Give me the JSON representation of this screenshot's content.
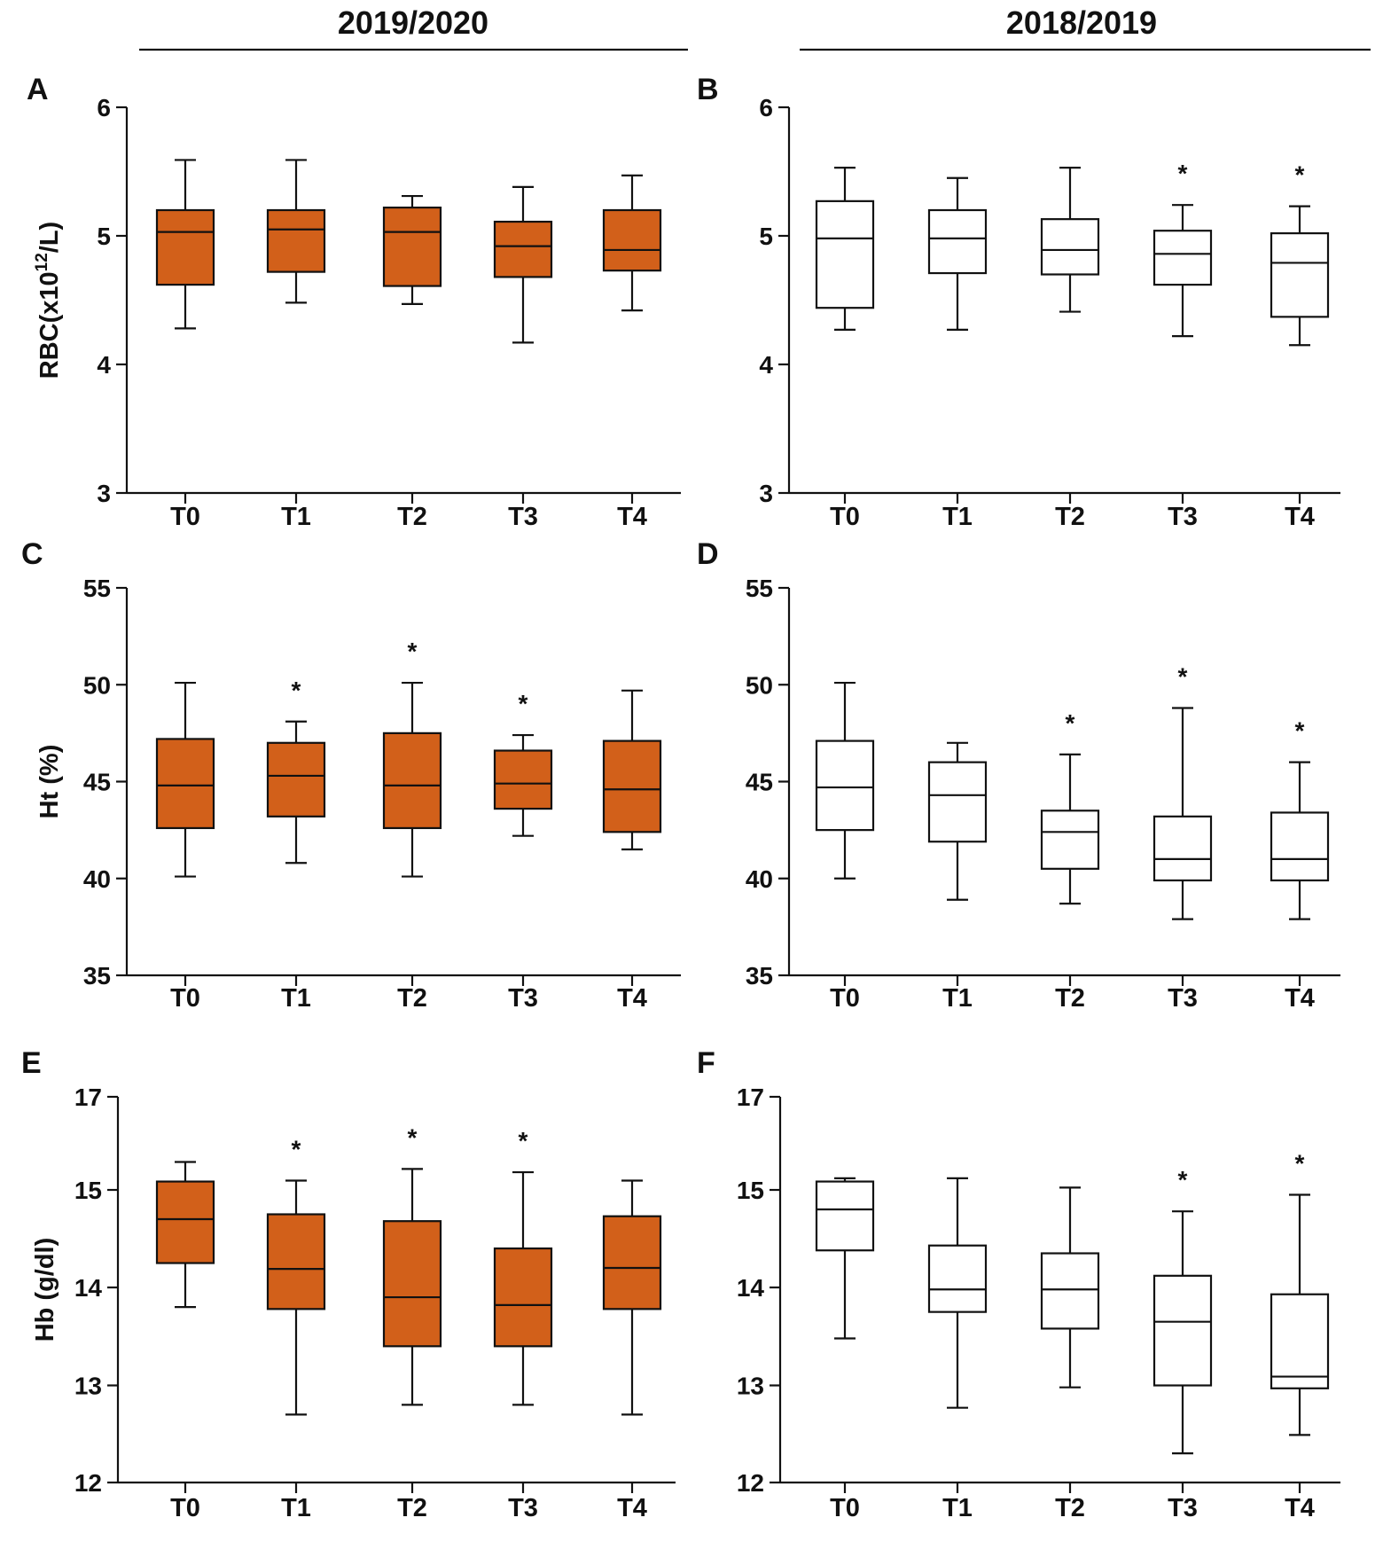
{
  "headers": {
    "left": "2019/2020",
    "right": "2018/2019"
  },
  "colors": {
    "filled": "#d2601a",
    "empty": "#ffffff",
    "stroke": "#111111"
  },
  "chart_data": [
    {
      "panel": "A",
      "type": "box",
      "group": "2019/2020",
      "fill": "filled",
      "ylabel": "RBC(x10",
      "ylabel_sup": "12",
      "ylabel_tail": "/L)",
      "ylim": [
        3,
        6
      ],
      "yticks": [
        3,
        4,
        5,
        6
      ],
      "categories": [
        "T0",
        "T1",
        "T2",
        "T3",
        "T4"
      ],
      "boxes": [
        {
          "min": 4.28,
          "q1": 4.62,
          "median": 5.03,
          "q3": 5.2,
          "max": 5.59,
          "star": false
        },
        {
          "min": 4.48,
          "q1": 4.72,
          "median": 5.05,
          "q3": 5.2,
          "max": 5.59,
          "star": false
        },
        {
          "min": 4.47,
          "q1": 4.61,
          "median": 5.03,
          "q3": 5.22,
          "max": 5.31,
          "star": false
        },
        {
          "min": 4.17,
          "q1": 4.68,
          "median": 4.92,
          "q3": 5.11,
          "max": 5.38,
          "star": false
        },
        {
          "min": 4.42,
          "q1": 4.73,
          "median": 4.89,
          "q3": 5.2,
          "max": 5.47,
          "star": false
        }
      ]
    },
    {
      "panel": "B",
      "type": "box",
      "group": "2018/2019",
      "fill": "empty",
      "ylabel": "",
      "ylabel_sup": "",
      "ylabel_tail": "",
      "ylim": [
        3,
        6
      ],
      "yticks": [
        3,
        4,
        5,
        6
      ],
      "categories": [
        "T0",
        "T1",
        "T2",
        "T3",
        "T4"
      ],
      "boxes": [
        {
          "min": 4.27,
          "q1": 4.44,
          "median": 4.98,
          "q3": 5.27,
          "max": 5.53,
          "star": false
        },
        {
          "min": 4.27,
          "q1": 4.71,
          "median": 4.98,
          "q3": 5.2,
          "max": 5.45,
          "star": false
        },
        {
          "min": 4.41,
          "q1": 4.7,
          "median": 4.89,
          "q3": 5.13,
          "max": 5.53,
          "star": false
        },
        {
          "min": 4.22,
          "q1": 4.62,
          "median": 4.86,
          "q3": 5.04,
          "max": 5.24,
          "star": true
        },
        {
          "min": 4.15,
          "q1": 4.37,
          "median": 4.79,
          "q3": 5.02,
          "max": 5.23,
          "star": true
        }
      ]
    },
    {
      "panel": "C",
      "type": "box",
      "group": "2019/2020",
      "fill": "filled",
      "ylabel": "Ht (%)",
      "ylabel_sup": "",
      "ylabel_tail": "",
      "ylim": [
        35,
        55
      ],
      "yticks": [
        35,
        40,
        45,
        50,
        55
      ],
      "categories": [
        "T0",
        "T1",
        "T2",
        "T3",
        "T4"
      ],
      "boxes": [
        {
          "min": 40.1,
          "q1": 42.6,
          "median": 44.8,
          "q3": 47.2,
          "max": 50.1,
          "star": false
        },
        {
          "min": 40.8,
          "q1": 43.2,
          "median": 45.3,
          "q3": 47.0,
          "max": 48.1,
          "star": true
        },
        {
          "min": 40.1,
          "q1": 42.6,
          "median": 44.8,
          "q3": 47.5,
          "max": 50.1,
          "star": true
        },
        {
          "min": 42.2,
          "q1": 43.6,
          "median": 44.9,
          "q3": 46.6,
          "max": 47.4,
          "star": true
        },
        {
          "min": 41.5,
          "q1": 42.4,
          "median": 44.6,
          "q3": 47.1,
          "max": 49.7,
          "star": false
        }
      ]
    },
    {
      "panel": "D",
      "type": "box",
      "group": "2018/2019",
      "fill": "empty",
      "ylabel": "",
      "ylabel_sup": "",
      "ylabel_tail": "",
      "ylim": [
        35,
        55
      ],
      "yticks": [
        35,
        40,
        45,
        50,
        55
      ],
      "categories": [
        "T0",
        "T1",
        "T2",
        "T3",
        "T4"
      ],
      "boxes": [
        {
          "min": 40.0,
          "q1": 42.5,
          "median": 44.7,
          "q3": 47.1,
          "max": 50.1,
          "star": false
        },
        {
          "min": 38.9,
          "q1": 41.9,
          "median": 44.3,
          "q3": 46.0,
          "max": 47.0,
          "star": false
        },
        {
          "min": 38.7,
          "q1": 40.5,
          "median": 42.4,
          "q3": 43.5,
          "max": 46.4,
          "star": true
        },
        {
          "min": 37.9,
          "q1": 39.9,
          "median": 41.0,
          "q3": 43.2,
          "max": 48.8,
          "star": true
        },
        {
          "min": 37.9,
          "q1": 39.9,
          "median": 41.0,
          "q3": 43.4,
          "max": 46.0,
          "star": true
        }
      ]
    },
    {
      "panel": "E",
      "type": "box",
      "group": "2019/2020",
      "fill": "filled",
      "ylabel": "Hb (g/dl)",
      "ylabel_sup": "",
      "ylabel_tail": "",
      "yaxis_break": "scale_changes_at_13_and_15",
      "ylim": [
        12,
        17
      ],
      "yticks": [
        12,
        13,
        14,
        15,
        17
      ],
      "categories": [
        "T0",
        "T1",
        "T2",
        "T3",
        "T4"
      ],
      "boxes": [
        {
          "min": 13.8,
          "q1": 14.25,
          "median": 14.7,
          "q3": 15.18,
          "max": 15.6,
          "star": false
        },
        {
          "min": 12.7,
          "q1": 13.78,
          "median": 14.19,
          "q3": 14.75,
          "max": 15.2,
          "star": true
        },
        {
          "min": 12.8,
          "q1": 13.4,
          "median": 13.9,
          "q3": 14.68,
          "max": 15.45,
          "star": true
        },
        {
          "min": 12.8,
          "q1": 13.4,
          "median": 13.82,
          "q3": 14.4,
          "max": 15.38,
          "star": true
        },
        {
          "min": 12.7,
          "q1": 13.78,
          "median": 14.2,
          "q3": 14.73,
          "max": 15.2,
          "star": false
        }
      ]
    },
    {
      "panel": "F",
      "type": "box",
      "group": "2018/2019",
      "fill": "empty",
      "ylabel": "",
      "ylabel_sup": "",
      "ylabel_tail": "",
      "yaxis_break": "scale_changes_at_13_and_15",
      "ylim": [
        12,
        17
      ],
      "yticks": [
        12,
        13,
        14,
        15,
        17
      ],
      "categories": [
        "T0",
        "T1",
        "T2",
        "T3",
        "T4"
      ],
      "boxes": [
        {
          "min": 13.48,
          "q1": 14.38,
          "median": 14.8,
          "q3": 15.18,
          "max": 15.25,
          "star": false
        },
        {
          "min": 12.77,
          "q1": 13.75,
          "median": 13.98,
          "q3": 14.43,
          "max": 15.25,
          "star": false
        },
        {
          "min": 12.98,
          "q1": 13.58,
          "median": 13.98,
          "q3": 14.35,
          "max": 15.05,
          "star": false
        },
        {
          "min": 12.3,
          "q1": 13.0,
          "median": 13.65,
          "q3": 14.12,
          "max": 14.78,
          "star": true
        },
        {
          "min": 12.49,
          "q1": 12.97,
          "median": 13.09,
          "q3": 13.93,
          "max": 14.95,
          "star": true
        }
      ]
    }
  ]
}
